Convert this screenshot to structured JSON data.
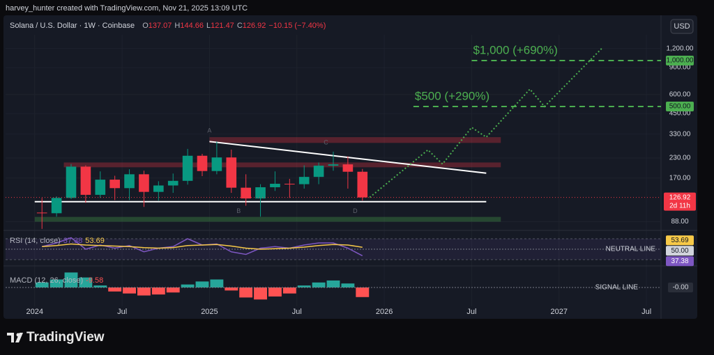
{
  "header": {
    "attribution": "harvey_hunter created with TradingView.com, Nov 21, 2025 13:09 UTC"
  },
  "footer": {
    "brand": "TradingView"
  },
  "chart_data": {
    "type": "candlestick",
    "title": "Solana / U.S. Dollar · 1W · Coinbase",
    "ohlc_legend": [
      {
        "label": "O",
        "value": "137.07"
      },
      {
        "label": "H",
        "value": "144.66"
      },
      {
        "label": "L",
        "value": "121.47"
      },
      {
        "label": "C",
        "value": "126.92"
      }
    ],
    "change": "−10.15 (−7.40%)",
    "currency": "USD",
    "x": [
      "2024-01",
      "2024-02",
      "2024-03",
      "2024-04",
      "2024-05",
      "2024-06",
      "2024-07",
      "2024-08",
      "2024-09",
      "2024-10",
      "2024-11",
      "2024-12",
      "2025-01",
      "2025-02",
      "2025-03",
      "2025-04",
      "2025-05",
      "2025-06",
      "2025-07",
      "2025-08",
      "2025-09",
      "2025-10",
      "2025-11"
    ],
    "open": [
      101,
      100,
      126,
      202,
      132,
      166,
      146,
      180,
      138,
      152,
      163,
      238,
      189,
      232,
      147,
      125,
      148,
      156,
      155,
      173,
      205,
      209,
      187
    ],
    "high": [
      126,
      129,
      210,
      206,
      188,
      176,
      194,
      190,
      162,
      182,
      264,
      245,
      295,
      261,
      180,
      155,
      188,
      168,
      206,
      215,
      253,
      236,
      195
    ],
    "low": [
      79,
      95,
      124,
      117,
      126,
      122,
      122,
      110,
      121,
      136,
      154,
      175,
      180,
      136,
      112,
      95,
      140,
      126,
      145,
      155,
      190,
      145,
      121
    ],
    "close": [
      100,
      126,
      202,
      132,
      166,
      146,
      180,
      138,
      152,
      163,
      238,
      189,
      232,
      147,
      125,
      148,
      156,
      155,
      173,
      205,
      209,
      187,
      126.92
    ],
    "up_color": "#089981",
    "down_color": "#f23645",
    "log_scale": true,
    "ylim": [
      78,
      1400
    ],
    "yticks": [
      {
        "value": 1200,
        "label": "1,200.00"
      },
      {
        "value": 900,
        "label": "900.00"
      },
      {
        "value": 600,
        "label": "600.00"
      },
      {
        "value": 450,
        "label": "450.00"
      },
      {
        "value": 330,
        "label": "330.00"
      },
      {
        "value": 230,
        "label": "230.00"
      },
      {
        "value": 170,
        "label": "170.00"
      },
      {
        "value": 88,
        "label": "88.00"
      }
    ],
    "xlim": [
      "2023-11",
      "2027-08"
    ],
    "xticks": [
      {
        "value": "2024-01",
        "label": "2024"
      },
      {
        "value": "2024-07",
        "label": "Jul"
      },
      {
        "value": "2025-01",
        "label": "2025"
      },
      {
        "value": "2025-07",
        "label": "Jul"
      },
      {
        "value": "2026-01",
        "label": "2026"
      },
      {
        "value": "2026-07",
        "label": "Jul"
      },
      {
        "value": "2027-01",
        "label": "2027"
      },
      {
        "value": "2027-07",
        "label": "Jul"
      }
    ],
    "last_price": {
      "value": 126.92,
      "label": "126.92",
      "countdown": "2d 11h",
      "color": "#f23645"
    },
    "targets": [
      {
        "value": 1000,
        "value_label": "1,000.00",
        "text": "$1,000 (+690%)",
        "from": "2026-07",
        "color": "#4caf50"
      },
      {
        "value": 500,
        "value_label": "500.00",
        "text": "$500 (+290%)",
        "from": "2026-03",
        "color": "#4caf50"
      }
    ],
    "trendline": {
      "x": [
        "2025-01",
        "2026-08"
      ],
      "values": [
        295,
        183
      ],
      "color": "#ffffff"
    },
    "support": {
      "x": [
        "2024-01",
        "2026-08"
      ],
      "values": [
        119,
        119
      ],
      "color": "#ffffff"
    },
    "projection": {
      "x": [
        "2025-12",
        "2026-04",
        "2026-05",
        "2026-07",
        "2026-08",
        "2026-11",
        "2026-12",
        "2027-04"
      ],
      "values": [
        127,
        260,
        210,
        365,
        315,
        650,
        500,
        1220
      ],
      "color": "#4caf50"
    },
    "zones": [
      {
        "from": "2025-01",
        "to": "2026-09",
        "low": 289,
        "high": 315,
        "color": "#f23645"
      },
      {
        "from": "2024-03",
        "to": "2026-09",
        "low": 200,
        "high": 215,
        "color": "#f23645"
      },
      {
        "from": "2024-01",
        "to": "2026-09",
        "low": 88,
        "high": 94.6,
        "color": "#4caf50"
      }
    ],
    "wave_labels": [
      {
        "text": "A",
        "x": "2025-01",
        "value": 346
      },
      {
        "text": "B",
        "x": "2025-03",
        "value": 103
      },
      {
        "text": "C",
        "x": "2025-09",
        "value": 289
      },
      {
        "text": "D",
        "x": "2025-11",
        "value": 103
      }
    ],
    "rsi": {
      "title": "RSI (14, close)",
      "ylim": [
        22,
        82
      ],
      "bands": [
        30,
        70
      ],
      "neutral": {
        "value": 50,
        "label": "50.00",
        "text": "NEUTRAL LINE"
      },
      "series": [
        {
          "color": "#7e57c2",
          "label": "37.38",
          "values": [
            55,
            62,
            72,
            50,
            58,
            52,
            57,
            45,
            52,
            55,
            70,
            58,
            60,
            45,
            40,
            52,
            55,
            52,
            58,
            62,
            62,
            52,
            37.38
          ]
        },
        {
          "color": "#f7c948",
          "label": "53.69",
          "values": [
            55,
            57,
            60,
            58,
            57,
            56,
            55,
            53,
            52,
            53,
            57,
            58,
            59,
            56,
            52,
            50,
            51,
            52,
            54,
            57,
            59,
            58,
            53.69
          ]
        }
      ]
    },
    "macd": {
      "title": "MACD (12, 26, close)",
      "value_label": "-9.58",
      "ylim": [
        -16,
        16
      ],
      "values": [
        5,
        8,
        15,
        10,
        2,
        -4,
        -6,
        -8,
        -7,
        -5,
        3,
        6,
        8,
        -3,
        -10,
        -12,
        -9,
        -6,
        2,
        5,
        7,
        4,
        -9.58
      ],
      "up_color": "#26a69a",
      "down_color": "#ff5252",
      "signal": {
        "value": 0,
        "label": "-0.00",
        "text": "SIGNAL LINE"
      }
    }
  }
}
